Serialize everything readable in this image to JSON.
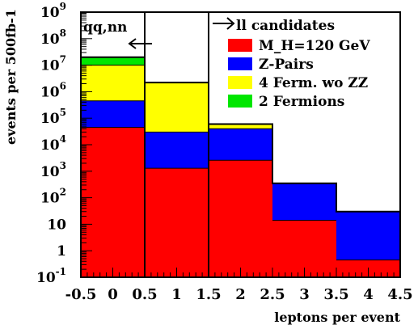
{
  "chart_data": {
    "type": "bar",
    "stacked": true,
    "log_scale_y": true,
    "xlabel": "leptons per event",
    "ylabel": "events per 500fb-1",
    "xlim": [
      -0.5,
      4.5
    ],
    "ylim": [
      0.1,
      1000000000
    ],
    "bins": [
      {
        "x": 0,
        "lo": -0.5,
        "hi": 0.5
      },
      {
        "x": 1,
        "lo": 0.5,
        "hi": 1.5
      },
      {
        "x": 2,
        "lo": 1.5,
        "hi": 2.5
      },
      {
        "x": 3,
        "lo": 2.5,
        "hi": 3.5
      },
      {
        "x": 4,
        "lo": 3.5,
        "hi": 4.5
      }
    ],
    "series": [
      {
        "name": "M_H=120 GeV",
        "color": "#ff0000",
        "cumulative_values": [
          45000,
          1300,
          2600,
          14,
          0.45
        ]
      },
      {
        "name": "Z-Pairs",
        "color": "#0000ff",
        "cumulative_values": [
          450000,
          30000,
          40000,
          350,
          30
        ]
      },
      {
        "name": "4 Ferm. wo ZZ",
        "color": "#ffff00",
        "cumulative_values": [
          10000000,
          2200000,
          60000,
          350,
          30
        ]
      },
      {
        "name": "2 Fermions",
        "color": "#00e600",
        "cumulative_values": [
          20000000,
          2200000,
          60000,
          350,
          30
        ]
      }
    ],
    "x_ticks": [
      {
        "value": -0.5,
        "label": "-0.5"
      },
      {
        "value": 0,
        "label": "0"
      },
      {
        "value": 0.5,
        "label": "0.5"
      },
      {
        "value": 1,
        "label": "1"
      },
      {
        "value": 1.5,
        "label": "1.5"
      },
      {
        "value": 2,
        "label": "2"
      },
      {
        "value": 2.5,
        "label": "2.5"
      },
      {
        "value": 3,
        "label": "3"
      },
      {
        "value": 3.5,
        "label": "3.5"
      },
      {
        "value": 4,
        "label": "4"
      },
      {
        "value": 4.5,
        "label": "4.5"
      }
    ],
    "y_ticks": [
      {
        "value": 0.1,
        "base": "10",
        "exp": "-1"
      },
      {
        "value": 1,
        "base": "1",
        "exp": ""
      },
      {
        "value": 10,
        "base": "10",
        "exp": ""
      },
      {
        "value": 100,
        "base": "10",
        "exp": "2"
      },
      {
        "value": 1000,
        "base": "10",
        "exp": "3"
      },
      {
        "value": 10000,
        "base": "10",
        "exp": "4"
      },
      {
        "value": 100000,
        "base": "10",
        "exp": "5"
      },
      {
        "value": 1000000,
        "base": "10",
        "exp": "6"
      },
      {
        "value": 10000000,
        "base": "10",
        "exp": "7"
      },
      {
        "value": 100000000,
        "base": "10",
        "exp": "8"
      },
      {
        "value": 1000000000,
        "base": "10",
        "exp": "9"
      }
    ],
    "cut_lines": [
      0.5,
      1.5
    ],
    "annotations": {
      "left": "qq,nn",
      "right": "ll candidates"
    },
    "legend": {
      "position": "top-right"
    }
  }
}
